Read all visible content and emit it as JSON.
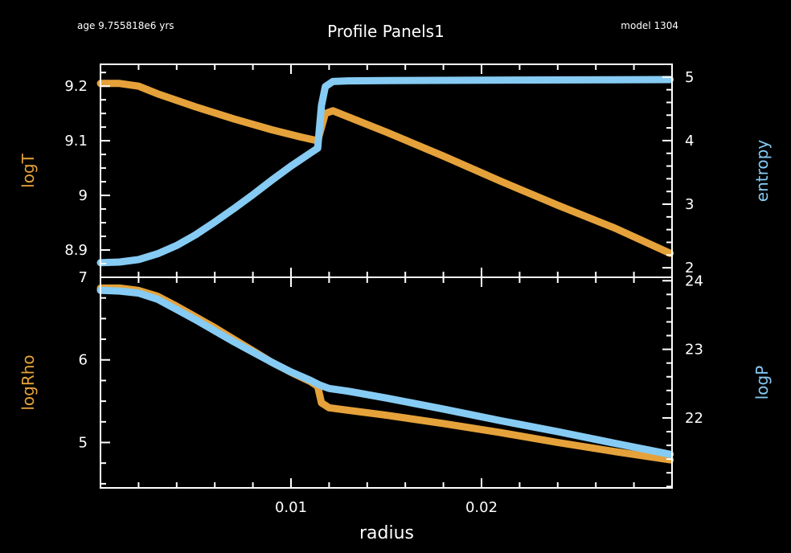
{
  "header": {
    "age": "age 9.755818e6 yrs",
    "title": "Profile Panels1",
    "model": "model 1304"
  },
  "colors": {
    "background": "#000000",
    "frame": "#ffffff",
    "orange": "#e5a23a",
    "blue": "#86cbf3"
  },
  "chart_data": [
    {
      "type": "line",
      "xlabel": "radius",
      "xlim": [
        0,
        0.03
      ],
      "xticks": [
        0.01,
        0.02
      ],
      "xtick_labels": [
        "0.01",
        "0.02"
      ],
      "ylabel_left": "logT",
      "ylabel_right": "entropy",
      "ylim_left": [
        8.85,
        9.24
      ],
      "ylim_right": [
        1.85,
        5.2
      ],
      "yticks_left": [
        8.9,
        9,
        9.1,
        9.2
      ],
      "ytick_labels_left": [
        "8.9",
        "9",
        "9.1",
        "9.2"
      ],
      "yticks_right": [
        2,
        3,
        4,
        5
      ],
      "ytick_labels_right": [
        "2",
        "3",
        "4",
        "5"
      ],
      "series": [
        {
          "axis": "left",
          "color": "#e5a23a",
          "x": [
            0,
            0.001,
            0.002,
            0.003,
            0.005,
            0.007,
            0.009,
            0.0105,
            0.0114,
            0.0118,
            0.0122,
            0.015,
            0.018,
            0.021,
            0.024,
            0.027,
            0.0299
          ],
          "y": [
            9.205,
            9.205,
            9.2,
            9.186,
            9.162,
            9.14,
            9.12,
            9.107,
            9.1,
            9.15,
            9.155,
            9.116,
            9.072,
            9.026,
            8.982,
            8.94,
            8.894
          ]
        },
        {
          "axis": "right",
          "color": "#86cbf3",
          "x": [
            0,
            0.001,
            0.002,
            0.003,
            0.004,
            0.005,
            0.006,
            0.007,
            0.008,
            0.009,
            0.01,
            0.011,
            0.0114,
            0.0116,
            0.0118,
            0.0122,
            0.013,
            0.015,
            0.02,
            0.025,
            0.0299
          ],
          "y": [
            2.08,
            2.09,
            2.13,
            2.22,
            2.35,
            2.52,
            2.72,
            2.93,
            3.15,
            3.38,
            3.6,
            3.8,
            3.88,
            4.55,
            4.85,
            4.93,
            4.94,
            4.945,
            4.95,
            4.955,
            4.96
          ]
        }
      ]
    },
    {
      "type": "line",
      "xlabel": "radius",
      "xlim": [
        0,
        0.03
      ],
      "xticks": [
        0.01,
        0.02
      ],
      "xtick_labels": [
        "0.01",
        "0.02"
      ],
      "ylabel_left": "logRho",
      "ylabel_right": "logP",
      "ylim_left": [
        4.45,
        7.0
      ],
      "ylim_right": [
        20.98,
        24.05
      ],
      "yticks_left": [
        5,
        6,
        7
      ],
      "ytick_labels_left": [
        "5",
        "6",
        "7"
      ],
      "yticks_right": [
        22,
        23,
        24
      ],
      "ytick_labels_right": [
        "22",
        "23",
        "24"
      ],
      "series": [
        {
          "axis": "left",
          "color": "#e5a23a",
          "x": [
            0,
            0.001,
            0.002,
            0.003,
            0.004,
            0.005,
            0.006,
            0.007,
            0.008,
            0.009,
            0.01,
            0.011,
            0.0114,
            0.0116,
            0.012,
            0.013,
            0.015,
            0.018,
            0.021,
            0.024,
            0.027,
            0.0299
          ],
          "y": [
            6.87,
            6.87,
            6.84,
            6.77,
            6.65,
            6.52,
            6.39,
            6.25,
            6.11,
            5.97,
            5.85,
            5.74,
            5.68,
            5.48,
            5.42,
            5.39,
            5.33,
            5.23,
            5.12,
            5.0,
            4.89,
            4.79
          ]
        },
        {
          "axis": "right",
          "color": "#86cbf3",
          "x": [
            0,
            0.001,
            0.002,
            0.003,
            0.004,
            0.005,
            0.006,
            0.007,
            0.008,
            0.009,
            0.01,
            0.011,
            0.0115,
            0.012,
            0.013,
            0.015,
            0.018,
            0.021,
            0.024,
            0.027,
            0.0299
          ],
          "y": [
            23.86,
            23.85,
            23.82,
            23.73,
            23.58,
            23.43,
            23.27,
            23.11,
            22.96,
            22.81,
            22.67,
            22.55,
            22.48,
            22.43,
            22.39,
            22.29,
            22.13,
            21.96,
            21.8,
            21.63,
            21.47
          ]
        }
      ]
    }
  ]
}
